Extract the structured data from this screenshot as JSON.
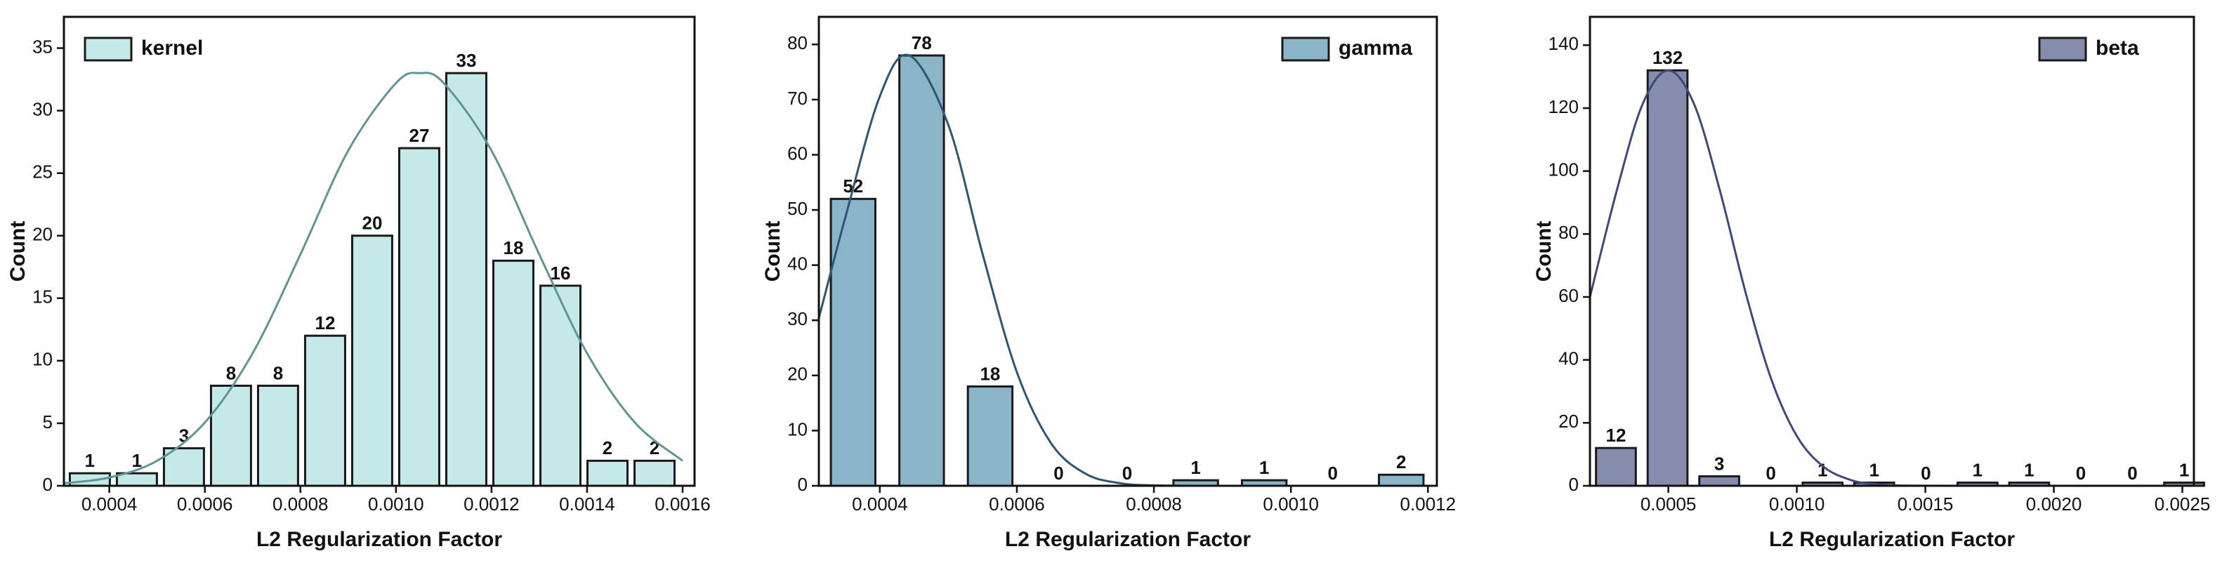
{
  "chart_data": [
    {
      "type": "histogram",
      "name": "kernel",
      "color": "#c5e8e8",
      "edgecolor": "#1a1a1a",
      "rwidth": 0.85,
      "bins": [
        0.00031,
        0.0004085,
        0.000507,
        0.0006055,
        0.000704,
        0.0008025,
        0.000901,
        0.0009995,
        0.001098,
        0.0011965,
        0.001295,
        0.0013935,
        0.001492,
        0.0015905
      ],
      "values": [
        1,
        1,
        3,
        8,
        8,
        12,
        20,
        27,
        33,
        18,
        16,
        2,
        2
      ],
      "fit": {
        "color": "#5f9595",
        "x": [
          0.0003,
          0.0004,
          0.0005,
          0.0006,
          0.0007,
          0.0008,
          0.0009,
          0.001,
          0.00105,
          0.0011,
          0.0012,
          0.0013,
          0.0014,
          0.0015,
          0.0016
        ],
        "values": [
          0.18,
          0.66,
          2.0,
          5.06,
          10.6,
          18.5,
          26.8,
          32.2,
          33,
          32.2,
          26.8,
          18.5,
          10.6,
          5.06,
          2.0
        ]
      },
      "xlabel": "L2 Regularization Factor",
      "ylabel": "Count",
      "xlim": [
        0.000305,
        0.001625
      ],
      "xticks": [
        0.0004,
        0.0006,
        0.0008,
        {
          "value": 0.001,
          "label": "0.0010"
        },
        0.0012,
        0.0014,
        0.0016
      ],
      "ylim": [
        0,
        37.5
      ],
      "yticks": [
        0,
        5,
        10,
        15,
        20,
        25,
        30,
        35
      ],
      "legend": "upper left"
    },
    {
      "type": "histogram",
      "name": "gamma",
      "color": "#8ab4c8",
      "edgecolor": "#1a1a1a",
      "rwidth": 0.65,
      "bins": [
        0.000311,
        0.000411,
        0.000511,
        0.000611,
        0.000711,
        0.000811,
        0.000911,
        0.001011,
        0.001111,
        0.001211
      ],
      "values": [
        52,
        78,
        18,
        0,
        0,
        1,
        1,
        0,
        2
      ],
      "fit": {
        "color": "#2f5670",
        "x": [
          0.000311,
          0.00035,
          0.0004,
          0.000443,
          0.0005,
          0.00055,
          0.0006,
          0.00065,
          0.0007,
          0.00075,
          0.0008,
          0.0009,
          0.0012
        ],
        "values": [
          30.4,
          48.8,
          70.6,
          78,
          65.4,
          42.0,
          20.6,
          7.7,
          2.2,
          0.48,
          0.08,
          0,
          0
        ]
      },
      "xlabel": "L2 Regularization Factor",
      "ylabel": "Count",
      "xlim": [
        0.000311,
        0.001213
      ],
      "xticks": [
        0.0004,
        0.0006,
        0.0008,
        {
          "value": 0.001,
          "label": "0.0010"
        },
        0.0012
      ],
      "ylim": [
        0,
        85
      ],
      "yticks": [
        0,
        10,
        20,
        30,
        40,
        50,
        60,
        70,
        80
      ],
      "legend": "upper right"
    },
    {
      "type": "histogram",
      "name": "beta",
      "color": "#868cae",
      "edgecolor": "#1a1a1a",
      "rwidth": 0.77,
      "bins": [
        0.0001955,
        0.0003965,
        0.0005975,
        0.0007985,
        0.0009995,
        0.0012005,
        0.0014015,
        0.0016025,
        0.0018035,
        0.0020045,
        0.0022055,
        0.0024065,
        0.0026075
      ],
      "values": [
        12,
        132,
        3,
        0,
        1,
        1,
        0,
        1,
        1,
        0,
        0,
        1
      ],
      "fit": {
        "color": "#3e4a7a",
        "x": [
          0.000195,
          0.0003,
          0.0004,
          0.0005,
          0.0006,
          0.0007,
          0.0008,
          0.0009,
          0.001,
          0.0011,
          0.0012,
          0.0013,
          0.0015,
          0.0025
        ],
        "values": [
          60.0,
          94.0,
          121.3,
          132,
          121.3,
          94.0,
          61.6,
          34.0,
          15.8,
          6.3,
          2.1,
          0.58,
          0.02,
          0
        ]
      },
      "xlabel": "L2 Regularization Factor",
      "ylabel": "Count",
      "xlim": [
        0.000195,
        0.002545
      ],
      "xticks": [
        0.0005,
        {
          "value": 0.001,
          "label": "0.0010"
        },
        0.0015,
        {
          "value": 0.002,
          "label": "0.0020"
        },
        0.0025
      ],
      "ylim": [
        0,
        149
      ],
      "yticks": [
        0,
        20,
        40,
        60,
        80,
        100,
        120,
        140
      ],
      "legend": "upper right"
    }
  ]
}
